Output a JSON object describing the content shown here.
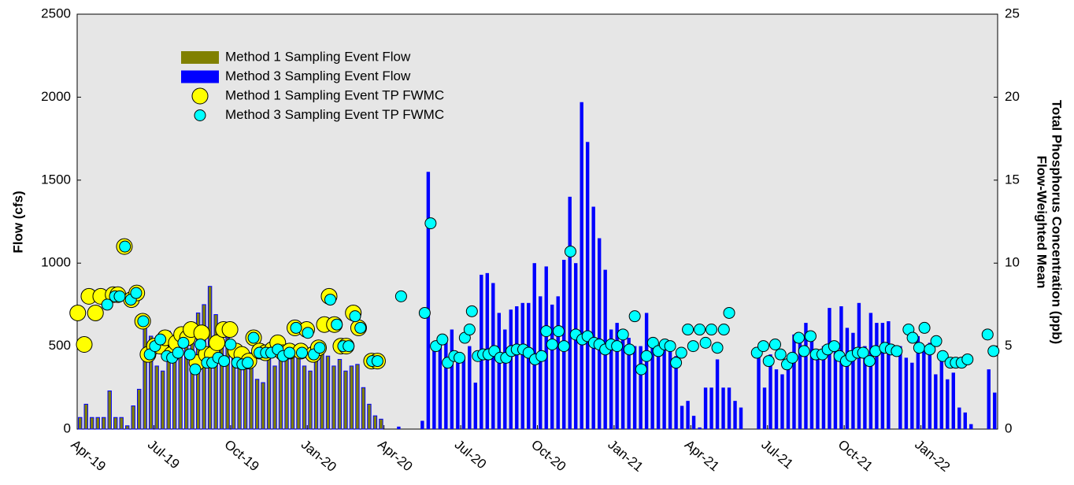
{
  "chart_data": {
    "type": "combo",
    "ylabel": "Flow (cfs)",
    "y2label": [
      "Flow-Weighted Mean",
      "Total Phosphorus Concentration (ppb)"
    ],
    "xlim": [
      0,
      156
    ],
    "xticks": [
      {
        "value": 0,
        "label": "Apr-19"
      },
      {
        "value": 13,
        "label": "Jul-19"
      },
      {
        "value": 26,
        "label": "Oct-19"
      },
      {
        "value": 39,
        "label": "Jan-20"
      },
      {
        "value": 52,
        "label": "Apr-20"
      },
      {
        "value": 65,
        "label": "Jul-20"
      },
      {
        "value": 78,
        "label": "Oct-20"
      },
      {
        "value": 91,
        "label": "Jan-21"
      },
      {
        "value": 104,
        "label": "Apr-21"
      },
      {
        "value": 117,
        "label": "Jul-21"
      },
      {
        "value": 130,
        "label": "Oct-21"
      },
      {
        "value": 143,
        "label": "Jan-22"
      }
    ],
    "ylim": [
      0,
      2500
    ],
    "yticks": [
      0,
      500,
      1000,
      1500,
      2000,
      2500
    ],
    "y2lim": [
      0,
      25
    ],
    "y2ticks": [
      0,
      5,
      10,
      15,
      20,
      25
    ],
    "legend": "upper left",
    "series": [
      {
        "name": "Method 1 Sampling Event Flow",
        "type": "bar",
        "color": "#808000",
        "x": [
          0.5,
          1.5,
          2.5,
          3.5,
          4.5,
          5.5,
          6.5,
          7.5,
          8.5,
          9.5,
          10.5,
          11.5,
          12.5,
          13.5,
          14.5,
          15.5,
          16.5,
          17.5,
          18.5,
          19.5,
          20.5,
          21.5,
          22.5,
          23.5,
          24.5,
          25.5,
          26.5,
          27.5,
          28.5,
          29.5,
          30.5,
          31.5,
          32.5,
          33.5,
          34.5,
          35.5,
          36.5,
          37.5,
          38.5,
          39.5,
          40.5,
          41.5,
          42.5,
          43.5,
          44.5,
          45.5,
          46.5,
          47.5,
          48.5,
          49.5,
          50.5,
          51.5
        ],
        "values": [
          70,
          150,
          70,
          70,
          70,
          230,
          70,
          70,
          20,
          140,
          240,
          640,
          560,
          380,
          350,
          590,
          560,
          480,
          550,
          600,
          700,
          750,
          860,
          690,
          520,
          550,
          520,
          480,
          420,
          460,
          300,
          280,
          420,
          380,
          520,
          500,
          460,
          440,
          380,
          350,
          420,
          480,
          440,
          380,
          420,
          350,
          380,
          390,
          250,
          150,
          80,
          60
        ]
      },
      {
        "name": "Method 3 Sampling Event Flow",
        "type": "bar",
        "color": "#0000ff",
        "x": [
          54.5,
          58.5,
          59.5,
          60.5,
          61.5,
          62.5,
          63.5,
          64.5,
          65.5,
          66.5,
          67.5,
          68.5,
          69.5,
          70.5,
          71.5,
          72.5,
          73.5,
          74.5,
          75.5,
          76.5,
          77.5,
          78.5,
          79.5,
          80.5,
          81.5,
          82.5,
          83.5,
          84.5,
          85.5,
          86.5,
          87.5,
          88.5,
          89.5,
          90.5,
          91.5,
          92.5,
          93.5,
          94.5,
          95.5,
          96.5,
          97.5,
          98.5,
          99.5,
          100.5,
          101.5,
          102.5,
          103.5,
          104.5,
          105.5,
          106.5,
          107.5,
          108.5,
          109.5,
          110.5,
          111.5,
          112.5,
          115.5,
          116.5,
          117.5,
          118.5,
          119.5,
          120.5,
          121.5,
          122.5,
          123.5,
          124.5,
          125.5,
          126.5,
          127.5,
          128.5,
          129.5,
          130.5,
          131.5,
          132.5,
          133.5,
          134.5,
          135.5,
          136.5,
          137.5,
          139.5,
          140.5,
          141.5,
          142.5,
          143.5,
          144.5,
          145.5,
          146.5,
          147.5,
          148.5,
          149.5,
          150.5,
          151.5,
          154.5,
          155.5
        ],
        "values": [
          15,
          50,
          1550,
          500,
          520,
          550,
          600,
          400,
          430,
          500,
          280,
          930,
          940,
          880,
          700,
          600,
          720,
          740,
          760,
          760,
          1000,
          800,
          980,
          750,
          800,
          1020,
          1400,
          1000,
          1970,
          1730,
          1340,
          1150,
          960,
          600,
          640,
          580,
          550,
          500,
          500,
          700,
          550,
          450,
          500,
          480,
          440,
          140,
          170,
          80,
          10,
          250,
          250,
          420,
          250,
          250,
          170,
          130,
          480,
          250,
          450,
          360,
          330,
          400,
          570,
          540,
          640,
          550,
          450,
          500,
          730,
          500,
          740,
          610,
          580,
          760,
          500,
          700,
          640,
          640,
          650,
          500,
          430,
          400,
          560,
          480,
          520,
          330,
          460,
          300,
          340,
          130,
          100,
          30,
          360,
          220
        ]
      },
      {
        "name": "Method 1 Sampling Event TP FWMC",
        "type": "scatter",
        "axis": "y2",
        "color": "#ffff00",
        "x": [
          0.1,
          1.2,
          2.0,
          3.1,
          4.0,
          6.1,
          6.9,
          8.0,
          9.2,
          10.1,
          11.1,
          12.0,
          13.1,
          14.1,
          14.9,
          16.0,
          16.8,
          17.7,
          18.7,
          19.3,
          20.3,
          21.1,
          21.9,
          22.9,
          23.7,
          24.8,
          25.9,
          26.9,
          27.9,
          29.1,
          29.9,
          30.9,
          31.9,
          33.1,
          34.0,
          34.9,
          36.0,
          36.9,
          37.9,
          38.9,
          40.0,
          40.9,
          41.9,
          42.7,
          43.6,
          44.7,
          45.6,
          46.8,
          47.7,
          49.9,
          50.9
        ],
        "values": [
          7.0,
          5.1,
          8.0,
          7.0,
          8.0,
          8.1,
          8.1,
          11.0,
          7.8,
          8.2,
          6.5,
          4.5,
          5.0,
          5.0,
          5.5,
          4.5,
          5.2,
          5.7,
          5.5,
          6.0,
          4.0,
          5.8,
          4.5,
          4.5,
          5.2,
          6.0,
          6.0,
          4.7,
          4.5,
          4.1,
          5.5,
          4.7,
          4.6,
          4.8,
          5.2,
          4.6,
          4.7,
          6.1,
          4.7,
          6.0,
          4.5,
          4.9,
          6.3,
          8.0,
          6.3,
          5.0,
          5.0,
          7.0,
          6.1,
          4.1,
          4.1
        ]
      },
      {
        "name": "Method 3 Sampling Event TP FWMC",
        "type": "scatter",
        "axis": "y2",
        "color": "#00ffff",
        "x": [
          5.1,
          6.4,
          7.2,
          8.1,
          9.1,
          10.0,
          11.2,
          12.3,
          13.2,
          14.1,
          15.2,
          16.1,
          17.1,
          18.0,
          19.1,
          20.0,
          20.9,
          22.0,
          22.9,
          23.9,
          24.9,
          26.0,
          27.1,
          28.0,
          28.9,
          29.9,
          30.9,
          32.0,
          32.9,
          34.0,
          34.9,
          36.0,
          37.1,
          38.1,
          39.1,
          40.1,
          41.1,
          42.9,
          44.0,
          45.1,
          46.0,
          47.1,
          48.0,
          50.0,
          50.9,
          54.9,
          58.9,
          59.9,
          60.8,
          61.9,
          62.8,
          63.9,
          64.8,
          65.7,
          66.5,
          66.9,
          67.9,
          68.8,
          69.7,
          70.7,
          71.7,
          72.7,
          73.6,
          74.5,
          75.6,
          76.5,
          77.6,
          78.7,
          79.5,
          80.5,
          81.6,
          82.5,
          83.6,
          84.5,
          85.6,
          86.5,
          87.6,
          88.5,
          89.5,
          90.5,
          91.5,
          92.5,
          93.6,
          94.5,
          95.6,
          96.5,
          97.6,
          98.5,
          99.6,
          100.5,
          101.5,
          102.4,
          103.5,
          104.4,
          105.5,
          106.5,
          107.5,
          108.5,
          109.6,
          110.5,
          115.2,
          116.3,
          117.2,
          118.3,
          119.2,
          120.3,
          121.2,
          122.3,
          123.2,
          124.3,
          125.2,
          126.3,
          127.2,
          128.3,
          129.2,
          130.3,
          131.2,
          132.3,
          133.2,
          134.3,
          135.3,
          136.9,
          137.9,
          138.9,
          140.9,
          141.6,
          142.7,
          143.6,
          144.5,
          145.6,
          146.7,
          148.0,
          148.9,
          149.9,
          150.9,
          154.3,
          155.3
        ],
        "values": [
          7.5,
          8.0,
          8.0,
          11.0,
          7.8,
          8.2,
          6.5,
          4.5,
          5.0,
          5.4,
          4.4,
          4.3,
          4.6,
          5.2,
          4.5,
          3.6,
          5.1,
          4.0,
          4.0,
          4.3,
          4.1,
          5.1,
          4.0,
          3.9,
          4.0,
          5.5,
          4.6,
          4.6,
          4.6,
          4.8,
          4.4,
          4.6,
          6.1,
          4.6,
          5.8,
          4.5,
          4.9,
          7.8,
          6.3,
          5.0,
          5.0,
          6.8,
          6.1,
          4.1,
          4.1,
          8.0,
          7.0,
          12.4,
          5.0,
          5.4,
          4.0,
          4.4,
          4.3,
          5.5,
          6.0,
          7.1,
          4.4,
          4.5,
          4.5,
          4.7,
          4.3,
          4.3,
          4.7,
          4.8,
          4.8,
          4.6,
          4.2,
          4.4,
          5.9,
          5.1,
          5.9,
          5.0,
          10.7,
          5.7,
          5.4,
          5.6,
          5.2,
          5.1,
          4.8,
          5.1,
          5.0,
          5.7,
          4.8,
          6.8,
          3.6,
          4.4,
          5.2,
          4.7,
          5.1,
          5.0,
          4.0,
          4.6,
          6.0,
          5.0,
          6.0,
          5.2,
          6.0,
          4.9,
          6.0,
          7.0,
          4.6,
          5.0,
          4.1,
          5.1,
          4.5,
          3.9,
          4.3,
          5.5,
          4.7,
          5.6,
          4.5,
          4.5,
          4.8,
          5.0,
          4.4,
          4.1,
          4.4,
          4.6,
          4.6,
          4.1,
          4.7,
          4.9,
          4.8,
          4.7,
          6.0,
          5.5,
          4.9,
          6.1,
          4.8,
          5.3,
          4.4,
          4.0,
          4.0,
          4.0,
          4.2,
          5.7,
          4.7
        ]
      }
    ]
  }
}
